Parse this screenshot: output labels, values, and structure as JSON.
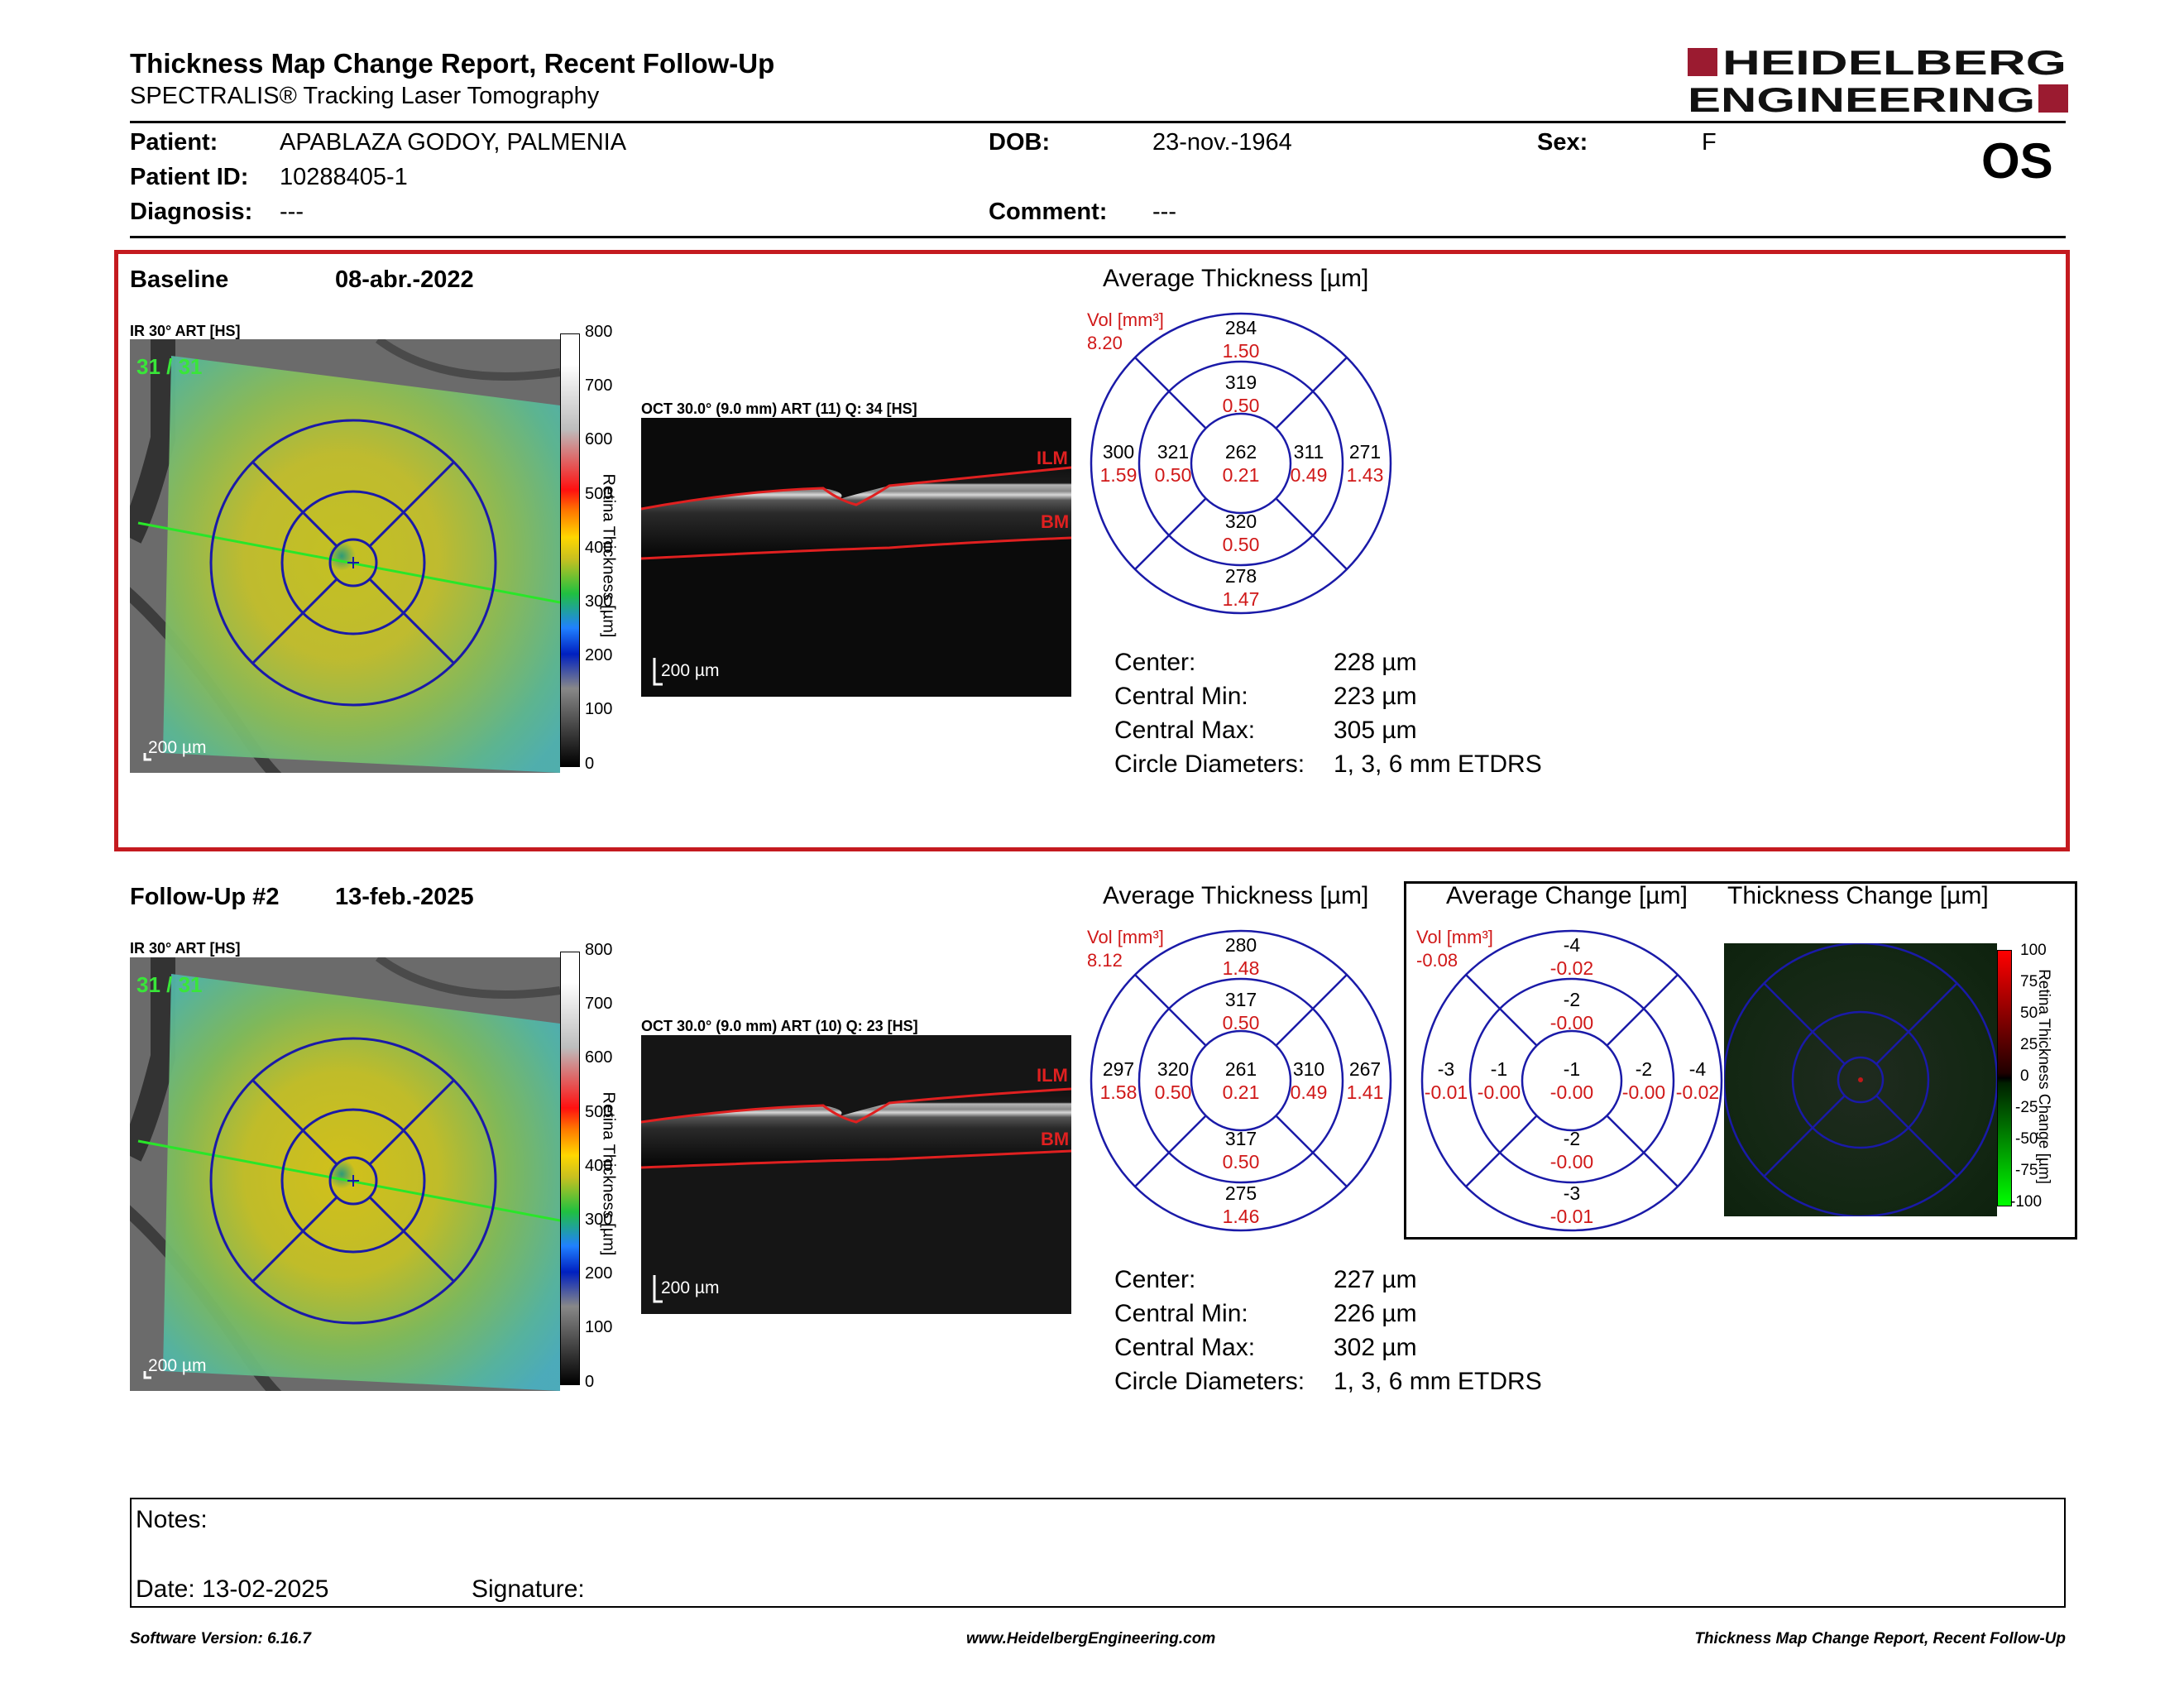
{
  "header": {
    "title": "Thickness Map Change Report, Recent Follow-Up",
    "subtitle": "SPECTRALIS® Tracking Laser Tomography",
    "brand_line1": "HEIDELBERG",
    "brand_line2": "ENGINEERING",
    "eye": "OS"
  },
  "patient": {
    "patient_label": "Patient:",
    "patient_value": "APABLAZA GODOY, PALMENIA",
    "dob_label": "DOB:",
    "dob_value": "23-nov.-1964",
    "sex_label": "Sex:",
    "sex_value": "F",
    "id_label": "Patient ID:",
    "id_value": "10288405-1",
    "diagnosis_label": "Diagnosis:",
    "diagnosis_value": "---",
    "comment_label": "Comment:",
    "comment_value": "---"
  },
  "colors": {
    "accent_red": "#c41a1f",
    "etdrs_blue": "#1a1aa8",
    "value_red": "#d01818"
  },
  "icons": [
    "ir-fundus-thickness-map",
    "oct-bscan",
    "etdrs-grid",
    "thickness-change-map"
  ],
  "baseline": {
    "label": "Baseline",
    "date": "08-abr.-2022",
    "ir_label": "IR 30° ART [HS]",
    "oct_label": "OCT 30.0° (9.0 mm) ART (11) Q: 34 [HS]",
    "frames": "31 / 31",
    "scale": "200 µm",
    "colorbar_title": "Retina Thickness [µm]",
    "colorbar_ticks": [
      "800",
      "700",
      "600",
      "500",
      "400",
      "300",
      "200",
      "100",
      "0"
    ],
    "ilm": "ILM",
    "bm": "BM",
    "avg_title": "Average Thickness [µm]",
    "vol_label": "Vol [mm³]",
    "vol_value": "8.20",
    "grid": {
      "sup_outer": [
        "284",
        "1.50"
      ],
      "sup_inner": [
        "319",
        "0.50"
      ],
      "temp_outer": [
        "300",
        "1.59"
      ],
      "temp_inner": [
        "321",
        "0.50"
      ],
      "center": [
        "262",
        "0.21"
      ],
      "nas_inner": [
        "311",
        "0.49"
      ],
      "nas_outer": [
        "271",
        "1.43"
      ],
      "inf_inner": [
        "320",
        "0.50"
      ],
      "inf_outer": [
        "278",
        "1.47"
      ]
    },
    "stats": {
      "center_label": "Center:",
      "center_value": "228 µm",
      "min_label": "Central Min:",
      "min_value": "223 µm",
      "max_label": "Central Max:",
      "max_value": "305 µm",
      "diam_label": "Circle Diameters:",
      "diam_value": "1, 3, 6 mm ETDRS"
    }
  },
  "followup": {
    "label": "Follow-Up #2",
    "date": "13-feb.-2025",
    "ir_label": "IR 30° ART [HS]",
    "oct_label": "OCT 30.0° (9.0 mm) ART (10) Q: 23 [HS]",
    "frames": "31 / 31",
    "scale": "200 µm",
    "colorbar_title": "Retina Thickness [µm]",
    "colorbar_ticks": [
      "800",
      "700",
      "600",
      "500",
      "400",
      "300",
      "200",
      "100",
      "0"
    ],
    "ilm": "ILM",
    "bm": "BM",
    "avg_title": "Average Thickness [µm]",
    "vol_label": "Vol [mm³]",
    "vol_value": "8.12",
    "grid": {
      "sup_outer": [
        "280",
        "1.48"
      ],
      "sup_inner": [
        "317",
        "0.50"
      ],
      "temp_outer": [
        "297",
        "1.58"
      ],
      "temp_inner": [
        "320",
        "0.50"
      ],
      "center": [
        "261",
        "0.21"
      ],
      "nas_inner": [
        "310",
        "0.49"
      ],
      "nas_outer": [
        "267",
        "1.41"
      ],
      "inf_inner": [
        "317",
        "0.50"
      ],
      "inf_outer": [
        "275",
        "1.46"
      ]
    },
    "stats": {
      "center_label": "Center:",
      "center_value": "227 µm",
      "min_label": "Central Min:",
      "min_value": "226 µm",
      "max_label": "Central Max:",
      "max_value": "302 µm",
      "diam_label": "Circle Diameters:",
      "diam_value": "1, 3, 6 mm ETDRS"
    }
  },
  "change": {
    "avg_title": "Average Change [µm]",
    "map_title": "Thickness Change [µm]",
    "vol_label": "Vol [mm³]",
    "vol_value": "-0.08",
    "grid": {
      "sup_outer": [
        "-4",
        "-0.02"
      ],
      "sup_inner": [
        "-2",
        "-0.00"
      ],
      "temp_outer": [
        "-3",
        "-0.01"
      ],
      "temp_inner": [
        "-1",
        "-0.00"
      ],
      "center": [
        "-1",
        "-0.00"
      ],
      "nas_inner": [
        "-2",
        "-0.00"
      ],
      "nas_outer": [
        "-4",
        "-0.02"
      ],
      "inf_inner": [
        "-2",
        "-0.00"
      ],
      "inf_outer": [
        "-3",
        "-0.01"
      ]
    },
    "colorbar_title": "Retina Thickness Change [µm]",
    "colorbar_ticks": [
      "100",
      "75",
      "50",
      "25",
      "0",
      "-25",
      "-50",
      "-75",
      "-100"
    ]
  },
  "notes": {
    "notes_label": "Notes:",
    "date_label": "Date: 13-02-2025",
    "signature_label": "Signature:"
  },
  "footer": {
    "software": "Software Version: 6.16.7",
    "website": "www.HeidelbergEngineering.com",
    "report": "Thickness Map Change Report, Recent Follow-Up"
  }
}
